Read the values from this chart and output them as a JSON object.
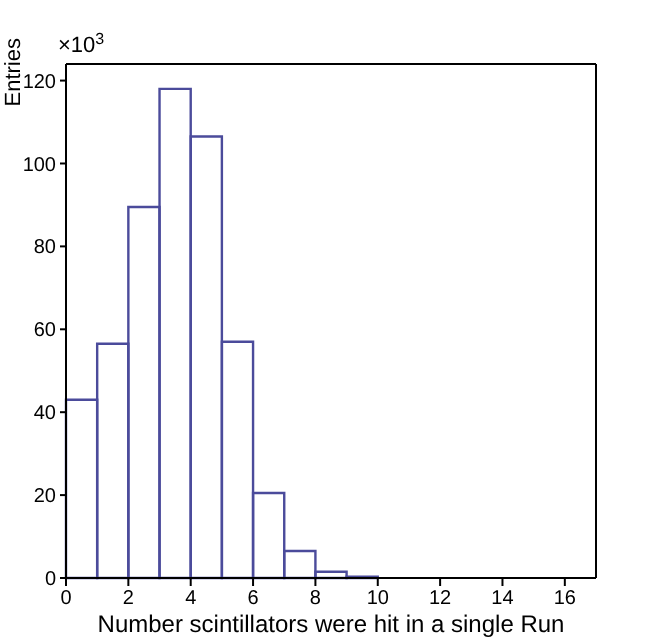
{
  "chart_data": {
    "type": "histogram",
    "xlabel": "Number scintillators were hit in a single Run",
    "ylabel": "Entries",
    "annotations": [
      "×10$^{3}$"
    ],
    "bins": [
      0,
      1,
      2,
      3,
      4,
      5,
      6,
      7,
      8,
      9,
      10,
      11,
      12,
      13,
      14,
      15,
      16,
      17
    ],
    "values": [
      43,
      56.5,
      89.5,
      118,
      106.5,
      57,
      20.5,
      6.5,
      1.5,
      0.3,
      0,
      0,
      0,
      0,
      0,
      0,
      0
    ],
    "color": "#4b4b9b",
    "xlim": [
      0,
      17
    ],
    "xticks": [
      0,
      2,
      4,
      6,
      8,
      10,
      12,
      14,
      16
    ],
    "ylim": [
      0,
      124
    ],
    "yticks": [
      0,
      20,
      40,
      60,
      80,
      100,
      120
    ]
  }
}
